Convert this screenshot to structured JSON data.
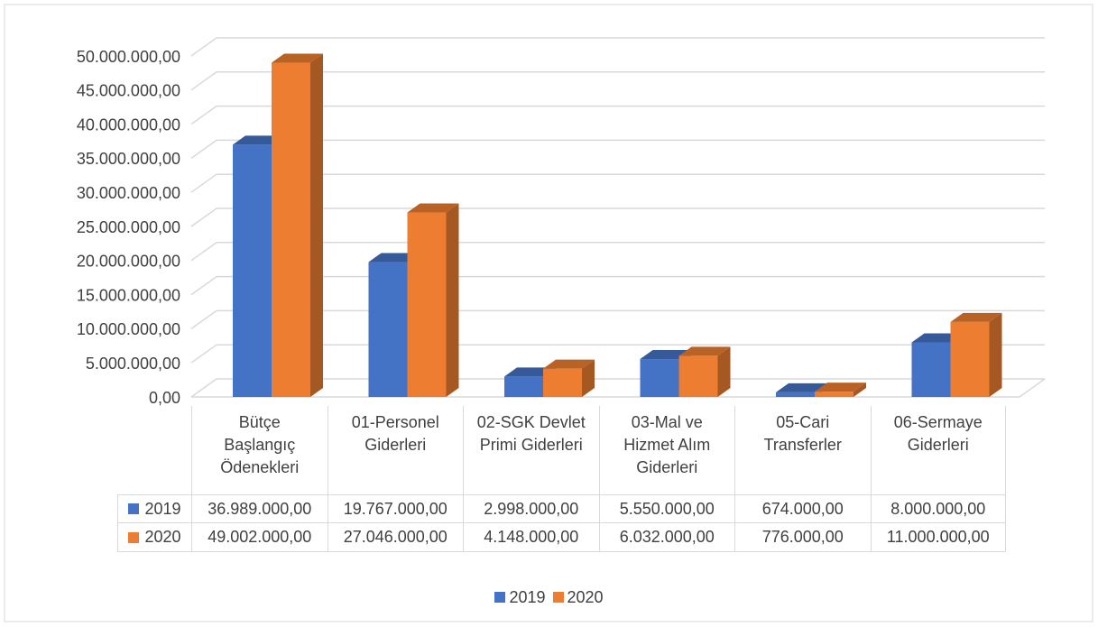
{
  "chart_data": {
    "type": "bar3d",
    "categories": [
      "Bütçe Başlangıç Ödenekleri",
      "01-Personel Giderleri",
      "02-SGK Devlet Primi Giderleri",
      "03-Mal ve Hizmet Alım Giderleri",
      "05-Cari Transferler",
      "06-Sermaye Giderleri"
    ],
    "series": [
      {
        "name": "2019",
        "color": "#4472c4",
        "values": [
          36989000,
          19767000,
          2998000,
          5550000,
          674000,
          8000000
        ],
        "value_labels": [
          "36.989.000,00",
          "19.767.000,00",
          "2.998.000,00",
          "5.550.000,00",
          "674.000,00",
          "8.000.000,00"
        ]
      },
      {
        "name": "2020",
        "color": "#ed7d31",
        "values": [
          49002000,
          27046000,
          4148000,
          6032000,
          776000,
          11000000
        ],
        "value_labels": [
          "49.002.000,00",
          "27.046.000,00",
          "4.148.000,00",
          "6.032.000,00",
          "776.000,00",
          "11.000.000,00"
        ]
      }
    ],
    "ylim": [
      0,
      50000000
    ],
    "yticks": [
      {
        "value": 0,
        "label": "0,00"
      },
      {
        "value": 5000000,
        "label": "5.000.000,00"
      },
      {
        "value": 10000000,
        "label": "10.000.000,00"
      },
      {
        "value": 15000000,
        "label": "15.000.000,00"
      },
      {
        "value": 20000000,
        "label": "20.000.000,00"
      },
      {
        "value": 25000000,
        "label": "25.000.000,00"
      },
      {
        "value": 30000000,
        "label": "30.000.000,00"
      },
      {
        "value": 35000000,
        "label": "35.000.000,00"
      },
      {
        "value": 40000000,
        "label": "40.000.000,00"
      },
      {
        "value": 45000000,
        "label": "45.000.000,00"
      },
      {
        "value": 50000000,
        "label": "50.000.000,00"
      }
    ],
    "grid": true,
    "legend": "bottom",
    "data_table": true
  }
}
